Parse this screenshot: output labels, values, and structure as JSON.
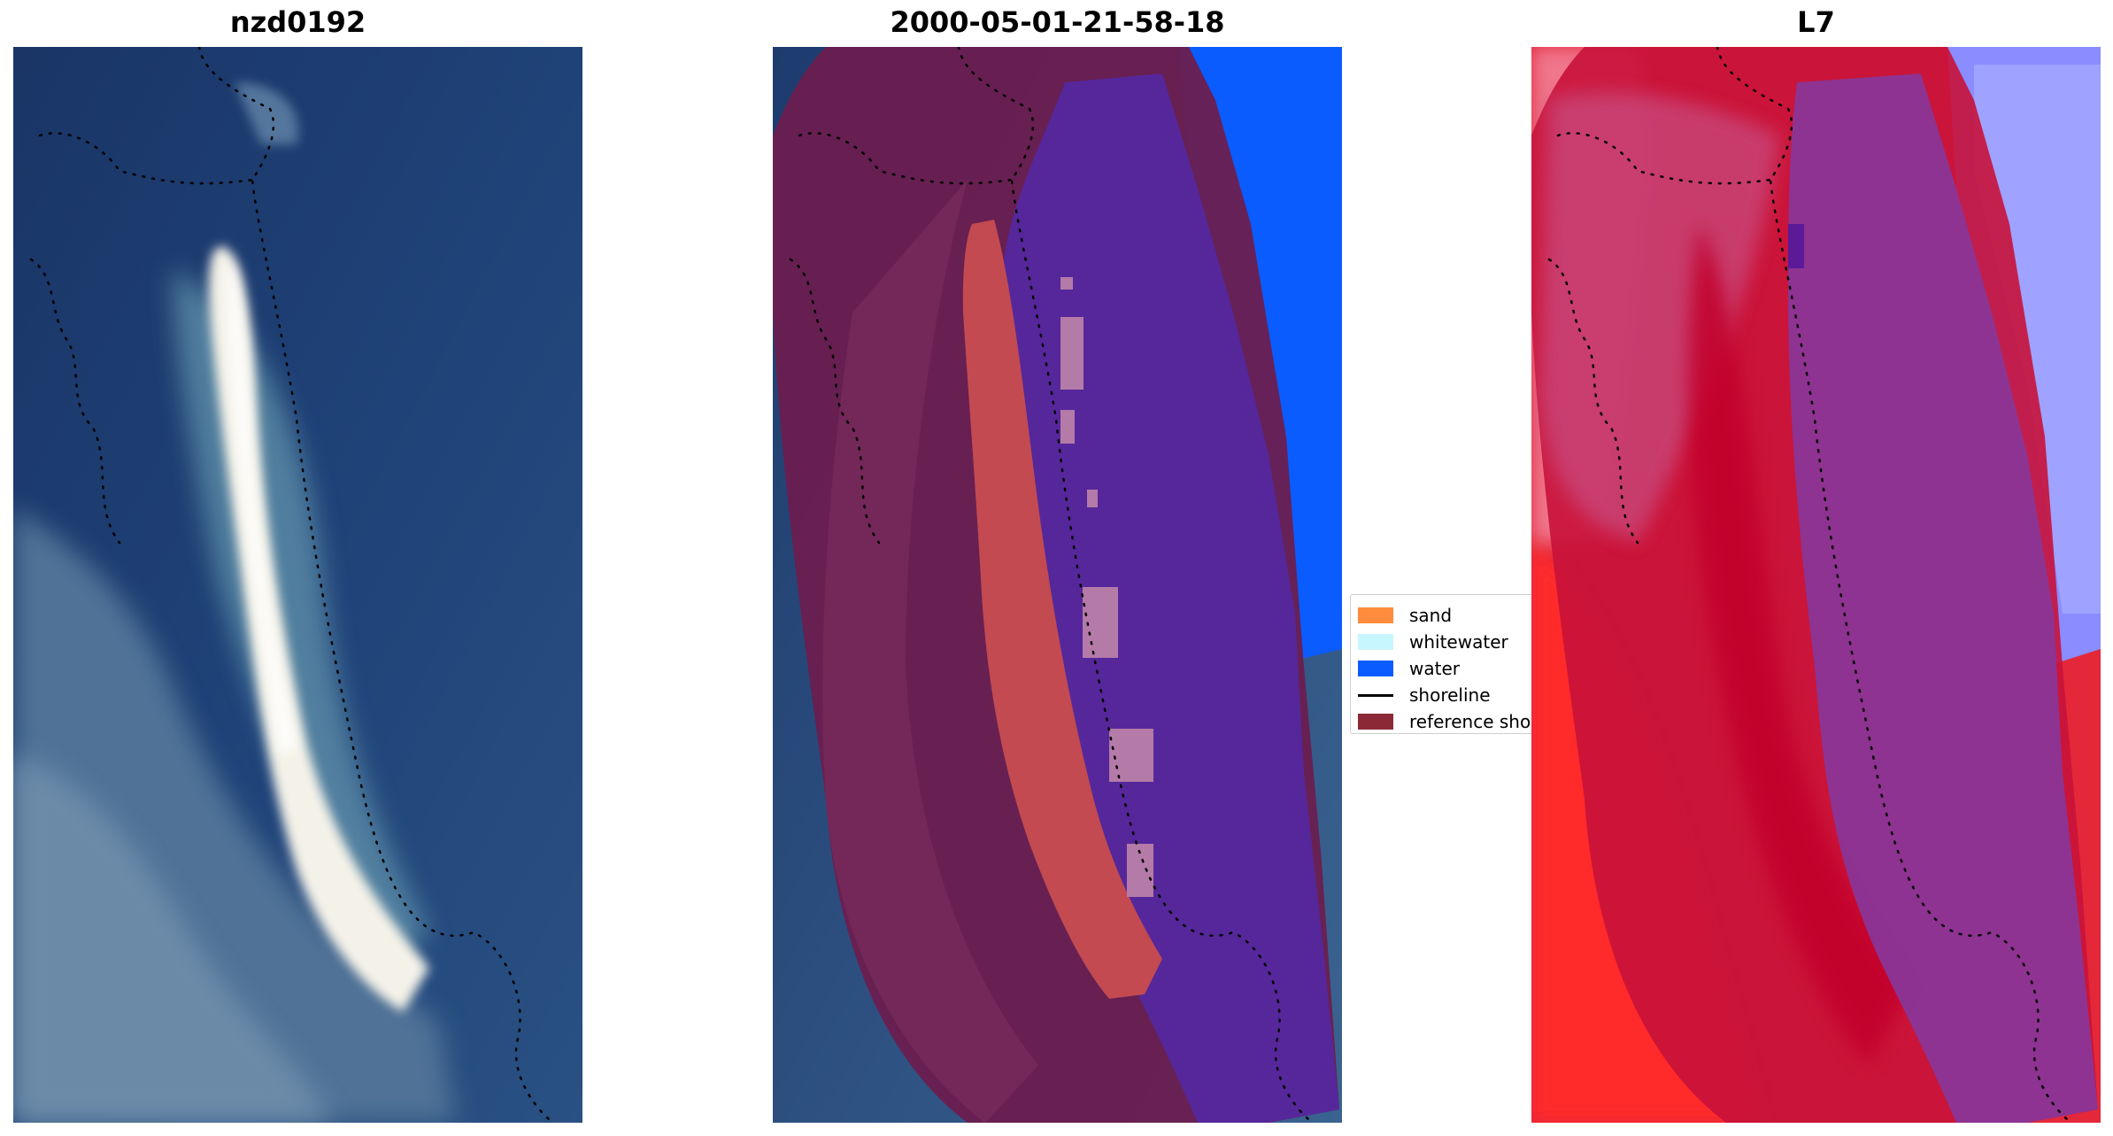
{
  "panels": {
    "left_title": "nzd0192",
    "middle_title": "2000-05-01-21-58-18",
    "right_title": "L7"
  },
  "legend": {
    "items": [
      {
        "label": "sand",
        "color": "#ff8c3c"
      },
      {
        "label": "whitewater",
        "color": "#c8f6ff"
      },
      {
        "label": "water",
        "color": "#0a5cff"
      },
      {
        "label": "shoreline",
        "color": "#000000"
      },
      {
        "label": "reference sho",
        "color": "#8b2a36"
      }
    ]
  },
  "colors": {
    "ocean": "#1d3e72",
    "sand_white": "#f2efe4",
    "overlay_maroon": "#6a1e4f",
    "overlay_purple": "#56279a",
    "overlay_sand": "#c24a50",
    "water_blue": "#0a5cff",
    "index_red": "#c8123a",
    "index_purple": "#7a2e8f"
  }
}
